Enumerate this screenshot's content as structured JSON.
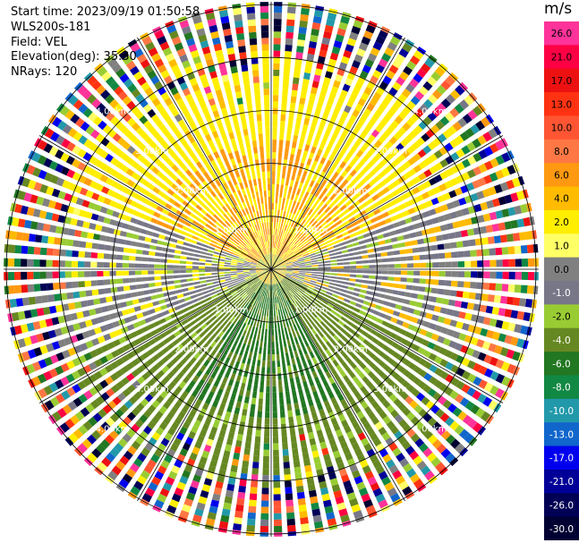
{
  "header": {
    "start_time": "Start time: 2023/09/19 01:50:58",
    "instrument": "WLS200s-181",
    "field": "Field: VEL",
    "elevation": "Elevation(deg): 35.30",
    "nrays": "NRays: 120"
  },
  "chart_data": {
    "type": "heatmap",
    "projection": "polar PPI",
    "field": "VEL",
    "units": "m/s",
    "n_rays": 120,
    "range_rings_km": [
      1.0,
      2.0,
      3.0,
      4.0,
      5.0
    ],
    "ring_labels": [
      "1.00km",
      "2.00km",
      "3.00km",
      "4.00km",
      "5.00km"
    ],
    "spoke_angles_deg": [
      0,
      30,
      60,
      90,
      120,
      150,
      180,
      210,
      240,
      270,
      300,
      330
    ],
    "colorbar": {
      "title": "m/s",
      "tick_labels": [
        "26.0",
        "21.0",
        "17.0",
        "13.0",
        "10.0",
        "8.0",
        "6.0",
        "4.0",
        "2.0",
        "1.0",
        "0.0",
        "-1.0",
        "-2.0",
        "-4.0",
        "-6.0",
        "-8.0",
        "-10.0",
        "-13.0",
        "-17.0",
        "-21.0",
        "-26.0",
        "-30.0"
      ],
      "colors": [
        "#ff3399",
        "#ff0044",
        "#ee1111",
        "#ff3311",
        "#ff5533",
        "#ff7744",
        "#ff9911",
        "#ffbb00",
        "#ffee00",
        "#ffff66",
        "#808080",
        "#777788",
        "#99cc33",
        "#668822",
        "#227722",
        "#118844",
        "#2299aa",
        "#1166cc",
        "#0000ee",
        "#000099",
        "#000055",
        "#000033"
      ]
    }
  }
}
